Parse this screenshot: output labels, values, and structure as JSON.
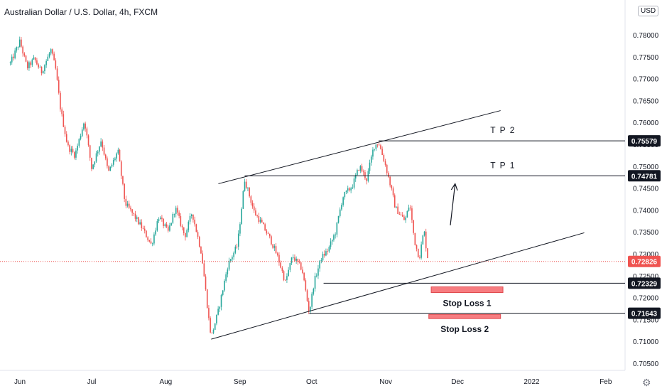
{
  "chart_title": "Australian Dollar / U.S. Dollar, 4h, FXCM",
  "currency_button": "USD",
  "settings_icon": "gear-icon",
  "chart_data": {
    "type": "candlestick",
    "symbol": "AUDUSD",
    "timeframe": "4h",
    "x_labels": [
      "Jun",
      "Jul",
      "Aug",
      "Sep",
      "Oct",
      "Nov",
      "Dec",
      "2022",
      "Feb"
    ],
    "y_ticks": [
      0.705,
      0.71,
      0.715,
      0.72,
      0.725,
      0.73,
      0.735,
      0.74,
      0.745,
      0.75,
      0.755,
      0.76,
      0.765,
      0.77,
      0.775,
      0.78
    ],
    "ylim": [
      0.7035,
      0.7855
    ],
    "grid": false,
    "colors": {
      "up": "#26a69a",
      "down": "#ef5350",
      "line": "#131722",
      "stop_box": "#f77c80",
      "price_line": "#ef5350"
    },
    "price_path": [
      [
        "2021-05-28",
        0.7735
      ],
      [
        "2021-06-01",
        0.7785
      ],
      [
        "2021-06-04",
        0.7725
      ],
      [
        "2021-06-07",
        0.7745
      ],
      [
        "2021-06-10",
        0.7715
      ],
      [
        "2021-06-14",
        0.7765
      ],
      [
        "2021-06-16",
        0.772
      ],
      [
        "2021-06-18",
        0.763
      ],
      [
        "2021-06-21",
        0.7545
      ],
      [
        "2021-06-24",
        0.7525
      ],
      [
        "2021-06-28",
        0.7605
      ],
      [
        "2021-07-01",
        0.7495
      ],
      [
        "2021-07-05",
        0.756
      ],
      [
        "2021-07-08",
        0.7485
      ],
      [
        "2021-07-12",
        0.7535
      ],
      [
        "2021-07-15",
        0.7415
      ],
      [
        "2021-07-19",
        0.7385
      ],
      [
        "2021-07-22",
        0.736
      ],
      [
        "2021-07-26",
        0.732
      ],
      [
        "2021-07-29",
        0.7385
      ],
      [
        "2021-08-02",
        0.735
      ],
      [
        "2021-08-05",
        0.7405
      ],
      [
        "2021-08-09",
        0.734
      ],
      [
        "2021-08-12",
        0.7395
      ],
      [
        "2021-08-16",
        0.73
      ],
      [
        "2021-08-19",
        0.715
      ],
      [
        "2021-08-20",
        0.711
      ],
      [
        "2021-08-23",
        0.717
      ],
      [
        "2021-08-27",
        0.7275
      ],
      [
        "2021-08-31",
        0.732
      ],
      [
        "2021-09-03",
        0.747
      ],
      [
        "2021-09-07",
        0.7395
      ],
      [
        "2021-09-10",
        0.737
      ],
      [
        "2021-09-14",
        0.733
      ],
      [
        "2021-09-17",
        0.729
      ],
      [
        "2021-09-20",
        0.7235
      ],
      [
        "2021-09-23",
        0.7295
      ],
      [
        "2021-09-27",
        0.7265
      ],
      [
        "2021-09-30",
        0.7165
      ],
      [
        "2021-10-02",
        0.7235
      ],
      [
        "2021-10-05",
        0.729
      ],
      [
        "2021-10-08",
        0.731
      ],
      [
        "2021-10-11",
        0.735
      ],
      [
        "2021-10-14",
        0.743
      ],
      [
        "2021-10-18",
        0.7455
      ],
      [
        "2021-10-21",
        0.75
      ],
      [
        "2021-10-24",
        0.747
      ],
      [
        "2021-10-27",
        0.7545
      ],
      [
        "2021-10-29",
        0.7555
      ],
      [
        "2021-11-01",
        0.75
      ],
      [
        "2021-11-03",
        0.7455
      ],
      [
        "2021-11-05",
        0.7405
      ],
      [
        "2021-11-09",
        0.7375
      ],
      [
        "2021-11-11",
        0.7415
      ],
      [
        "2021-11-13",
        0.733
      ],
      [
        "2021-11-15",
        0.729
      ],
      [
        "2021-11-17",
        0.7355
      ],
      [
        "2021-11-18",
        0.731
      ],
      [
        "2021-11-19",
        0.7275
      ]
    ],
    "trendlines": [
      {
        "start": [
          "2021-08-23",
          0.746
        ],
        "end": [
          "2021-12-19",
          0.7627
        ]
      },
      {
        "start": [
          "2021-08-20",
          0.7105
        ],
        "end": [
          "2022-01-23",
          0.7348
        ]
      }
    ],
    "levels": [
      {
        "label": "T P 2",
        "value": 0.75579,
        "tag": "0.75579",
        "start": "2021-10-29",
        "label_at": "2021-12-20"
      },
      {
        "label": "T P 1",
        "value": 0.74781,
        "tag": "0.74781",
        "start": "2021-09-03",
        "label_at": "2021-12-20"
      },
      {
        "label": "",
        "value": 0.72329,
        "tag": "0.72329",
        "start": "2021-10-06"
      },
      {
        "label": "",
        "value": 0.71643,
        "tag": "0.71643",
        "start": "2021-09-30"
      }
    ],
    "current_price": {
      "value": 0.72826,
      "tag": "0.72826"
    },
    "stop_boxes": [
      {
        "label": "Stop Loss 1",
        "from": "2021-11-20",
        "to": "2021-12-20",
        "top": 0.72245,
        "bottom": 0.72115
      },
      {
        "label": "Stop Loss 2",
        "from": "2021-11-19",
        "to": "2021-12-19",
        "top": 0.71615,
        "bottom": 0.7152
      }
    ],
    "arrow": {
      "from": [
        "2021-11-28",
        0.7365
      ],
      "to": [
        "2021-11-30",
        0.746
      ]
    }
  }
}
